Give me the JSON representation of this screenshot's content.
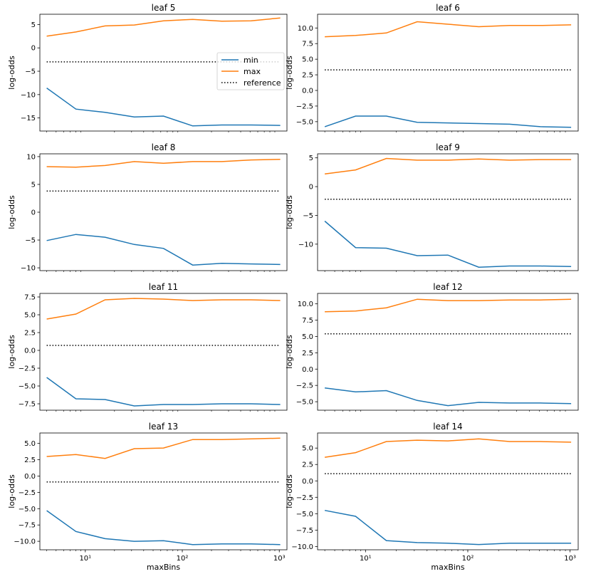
{
  "chart_data": [
    {
      "type": "line",
      "title": "leaf 5",
      "xlabel": "",
      "ylabel": "log-odds",
      "xscale": "log",
      "x": [
        4,
        8,
        16,
        32,
        64,
        128,
        256,
        512,
        1024
      ],
      "xlim": [
        3.4,
        1200
      ],
      "ylim": [
        -17.8,
        7.2
      ],
      "yticks": [
        5,
        0,
        -5,
        -10,
        -15
      ],
      "ytick_labels": [
        "5",
        "0",
        "−5",
        "−10",
        "−15"
      ],
      "xticks": [],
      "xtick_labels": [],
      "series": [
        {
          "name": "min",
          "color": "#1f77b4",
          "style": "solid",
          "values": [
            -8.6,
            -13.1,
            -13.8,
            -14.8,
            -14.6,
            -16.7,
            -16.5,
            -16.5,
            -16.6
          ]
        },
        {
          "name": "max",
          "color": "#ff7f0e",
          "style": "solid",
          "values": [
            2.5,
            3.4,
            4.7,
            4.9,
            5.8,
            6.1,
            5.7,
            5.8,
            6.4
          ]
        },
        {
          "name": "reference",
          "color": "#000000",
          "style": "dotted",
          "values": [
            -3.0,
            -3.0,
            -3.0,
            -3.0,
            -3.0,
            -3.0,
            -3.0,
            -3.0,
            -3.0
          ]
        }
      ],
      "legend": {
        "placement": "center-right",
        "entries": [
          "min",
          "max",
          "reference"
        ]
      }
    },
    {
      "type": "line",
      "title": "leaf 6",
      "xlabel": "",
      "ylabel": "log-odds",
      "xscale": "log",
      "x": [
        4,
        8,
        16,
        32,
        64,
        128,
        256,
        512,
        1024
      ],
      "xlim": [
        3.4,
        1200
      ],
      "ylim": [
        -6.5,
        12.2
      ],
      "yticks": [
        10.0,
        7.5,
        5.0,
        2.5,
        0.0,
        -2.5,
        -5.0
      ],
      "ytick_labels": [
        "10.0",
        "7.5",
        "5.0",
        "2.5",
        "0.0",
        "−2.5",
        "−5.0"
      ],
      "xticks": [],
      "xtick_labels": [],
      "series": [
        {
          "name": "min",
          "color": "#1f77b4",
          "style": "solid",
          "values": [
            -5.8,
            -4.1,
            -4.1,
            -5.1,
            -5.2,
            -5.3,
            -5.4,
            -5.8,
            -5.9
          ]
        },
        {
          "name": "max",
          "color": "#ff7f0e",
          "style": "solid",
          "values": [
            8.6,
            8.8,
            9.2,
            11.0,
            10.6,
            10.2,
            10.4,
            10.4,
            10.5
          ]
        },
        {
          "name": "reference",
          "color": "#000000",
          "style": "dotted",
          "values": [
            3.3,
            3.3,
            3.3,
            3.3,
            3.3,
            3.3,
            3.3,
            3.3,
            3.3
          ]
        }
      ]
    },
    {
      "type": "line",
      "title": "leaf 8",
      "xlabel": "",
      "ylabel": "log-odds",
      "xscale": "log",
      "x": [
        4,
        8,
        16,
        32,
        64,
        128,
        256,
        512,
        1024
      ],
      "xlim": [
        3.4,
        1200
      ],
      "ylim": [
        -10.5,
        10.5
      ],
      "yticks": [
        10,
        5,
        0,
        -5,
        -10
      ],
      "ytick_labels": [
        "10",
        "5",
        "0",
        "−5",
        "−10"
      ],
      "xticks": [],
      "xtick_labels": [],
      "series": [
        {
          "name": "min",
          "color": "#1f77b4",
          "style": "solid",
          "values": [
            -5.1,
            -4.0,
            -4.5,
            -5.8,
            -6.5,
            -9.5,
            -9.2,
            -9.3,
            -9.4
          ]
        },
        {
          "name": "max",
          "color": "#ff7f0e",
          "style": "solid",
          "values": [
            8.2,
            8.1,
            8.4,
            9.1,
            8.8,
            9.1,
            9.1,
            9.4,
            9.5
          ]
        },
        {
          "name": "reference",
          "color": "#000000",
          "style": "dotted",
          "values": [
            3.8,
            3.8,
            3.8,
            3.8,
            3.8,
            3.8,
            3.8,
            3.8,
            3.8
          ]
        }
      ]
    },
    {
      "type": "line",
      "title": "leaf 9",
      "xlabel": "",
      "ylabel": "log-odds",
      "xscale": "log",
      "x": [
        4,
        8,
        16,
        32,
        64,
        128,
        256,
        512,
        1024
      ],
      "xlim": [
        3.4,
        1200
      ],
      "ylim": [
        -14.6,
        5.7
      ],
      "yticks": [
        5,
        0,
        -5,
        -10
      ],
      "ytick_labels": [
        "5",
        "0",
        "−5",
        "−10"
      ],
      "xticks": [],
      "xtick_labels": [],
      "series": [
        {
          "name": "min",
          "color": "#1f77b4",
          "style": "solid",
          "values": [
            -6.0,
            -10.6,
            -10.7,
            -12.0,
            -11.9,
            -14.0,
            -13.8,
            -13.8,
            -13.9
          ]
        },
        {
          "name": "max",
          "color": "#ff7f0e",
          "style": "solid",
          "values": [
            2.2,
            2.9,
            4.9,
            4.6,
            4.6,
            4.8,
            4.6,
            4.7,
            4.7
          ]
        },
        {
          "name": "reference",
          "color": "#000000",
          "style": "dotted",
          "values": [
            -2.2,
            -2.2,
            -2.2,
            -2.2,
            -2.2,
            -2.2,
            -2.2,
            -2.2,
            -2.2
          ]
        }
      ]
    },
    {
      "type": "line",
      "title": "leaf 11",
      "xlabel": "",
      "ylabel": "log-odds",
      "xscale": "log",
      "x": [
        4,
        8,
        16,
        32,
        64,
        128,
        256,
        512,
        1024
      ],
      "xlim": [
        3.4,
        1200
      ],
      "ylim": [
        -8.4,
        8.0
      ],
      "yticks": [
        7.5,
        5.0,
        2.5,
        0.0,
        -2.5,
        -5.0,
        -7.5
      ],
      "ytick_labels": [
        "7.5",
        "5.0",
        "2.5",
        "0.0",
        "−2.5",
        "−5.0",
        "−7.5"
      ],
      "xticks": [],
      "xtick_labels": [],
      "series": [
        {
          "name": "min",
          "color": "#1f77b4",
          "style": "solid",
          "values": [
            -3.8,
            -6.8,
            -6.9,
            -7.8,
            -7.6,
            -7.6,
            -7.5,
            -7.5,
            -7.6
          ]
        },
        {
          "name": "max",
          "color": "#ff7f0e",
          "style": "solid",
          "values": [
            4.4,
            5.1,
            7.1,
            7.3,
            7.2,
            7.0,
            7.1,
            7.1,
            7.0
          ]
        },
        {
          "name": "reference",
          "color": "#000000",
          "style": "dotted",
          "values": [
            0.7,
            0.7,
            0.7,
            0.7,
            0.7,
            0.7,
            0.7,
            0.7,
            0.7
          ]
        }
      ]
    },
    {
      "type": "line",
      "title": "leaf 12",
      "xlabel": "",
      "ylabel": "log-odds",
      "xscale": "log",
      "x": [
        4,
        8,
        16,
        32,
        64,
        128,
        256,
        512,
        1024
      ],
      "xlim": [
        3.4,
        1200
      ],
      "ylim": [
        -6.3,
        11.6
      ],
      "yticks": [
        10.0,
        7.5,
        5.0,
        2.5,
        0.0,
        -2.5,
        -5.0
      ],
      "ytick_labels": [
        "10.0",
        "7.5",
        "5.0",
        "2.5",
        "0.0",
        "−2.5",
        "−5.0"
      ],
      "xticks": [],
      "xtick_labels": [],
      "series": [
        {
          "name": "min",
          "color": "#1f77b4",
          "style": "solid",
          "values": [
            -2.9,
            -3.5,
            -3.3,
            -4.8,
            -5.6,
            -5.1,
            -5.2,
            -5.2,
            -5.3
          ]
        },
        {
          "name": "max",
          "color": "#ff7f0e",
          "style": "solid",
          "values": [
            8.8,
            8.9,
            9.4,
            10.7,
            10.5,
            10.5,
            10.6,
            10.6,
            10.7
          ]
        },
        {
          "name": "reference",
          "color": "#000000",
          "style": "dotted",
          "values": [
            5.4,
            5.4,
            5.4,
            5.4,
            5.4,
            5.4,
            5.4,
            5.4,
            5.4
          ]
        }
      ]
    },
    {
      "type": "line",
      "title": "leaf 13",
      "xlabel": "maxBins",
      "ylabel": "log-odds",
      "xscale": "log",
      "x": [
        4,
        8,
        16,
        32,
        64,
        128,
        256,
        512,
        1024
      ],
      "xlim": [
        3.4,
        1200
      ],
      "ylim": [
        -11.3,
        6.6
      ],
      "yticks": [
        5.0,
        2.5,
        0.0,
        -2.5,
        -5.0,
        -7.5,
        -10.0
      ],
      "ytick_labels": [
        "5.0",
        "2.5",
        "0.0",
        "−2.5",
        "−5.0",
        "−7.5",
        "−10.0"
      ],
      "xticks": [
        10,
        100,
        1000
      ],
      "xtick_labels": [
        "10¹",
        "10²",
        "10³"
      ],
      "series": [
        {
          "name": "min",
          "color": "#1f77b4",
          "style": "solid",
          "values": [
            -5.3,
            -8.5,
            -9.6,
            -10.0,
            -9.9,
            -10.5,
            -10.4,
            -10.4,
            -10.5
          ]
        },
        {
          "name": "max",
          "color": "#ff7f0e",
          "style": "solid",
          "values": [
            3.0,
            3.3,
            2.7,
            4.2,
            4.3,
            5.6,
            5.6,
            5.7,
            5.8
          ]
        },
        {
          "name": "reference",
          "color": "#000000",
          "style": "dotted",
          "values": [
            -0.9,
            -0.9,
            -0.9,
            -0.9,
            -0.9,
            -0.9,
            -0.9,
            -0.9,
            -0.9
          ]
        }
      ]
    },
    {
      "type": "line",
      "title": "leaf 14",
      "xlabel": "maxBins",
      "ylabel": "log-odds",
      "xscale": "log",
      "x": [
        4,
        8,
        16,
        32,
        64,
        128,
        256,
        512,
        1024
      ],
      "xlim": [
        3.4,
        1200
      ],
      "ylim": [
        -10.5,
        7.3
      ],
      "yticks": [
        5.0,
        2.5,
        0.0,
        -2.5,
        -5.0,
        -7.5,
        -10.0
      ],
      "ytick_labels": [
        "5.0",
        "2.5",
        "0.0",
        "−2.5",
        "−5.0",
        "−7.5",
        "−10.0"
      ],
      "xticks": [
        10,
        100,
        1000
      ],
      "xtick_labels": [
        "10¹",
        "10²",
        "10³"
      ],
      "series": [
        {
          "name": "min",
          "color": "#1f77b4",
          "style": "solid",
          "values": [
            -4.5,
            -5.4,
            -9.1,
            -9.4,
            -9.5,
            -9.7,
            -9.5,
            -9.5,
            -9.5
          ]
        },
        {
          "name": "max",
          "color": "#ff7f0e",
          "style": "solid",
          "values": [
            3.6,
            4.3,
            6.0,
            6.2,
            6.1,
            6.4,
            6.0,
            6.0,
            5.9
          ]
        },
        {
          "name": "reference",
          "color": "#000000",
          "style": "dotted",
          "values": [
            1.1,
            1.1,
            1.1,
            1.1,
            1.1,
            1.1,
            1.1,
            1.1,
            1.1
          ]
        }
      ]
    }
  ]
}
